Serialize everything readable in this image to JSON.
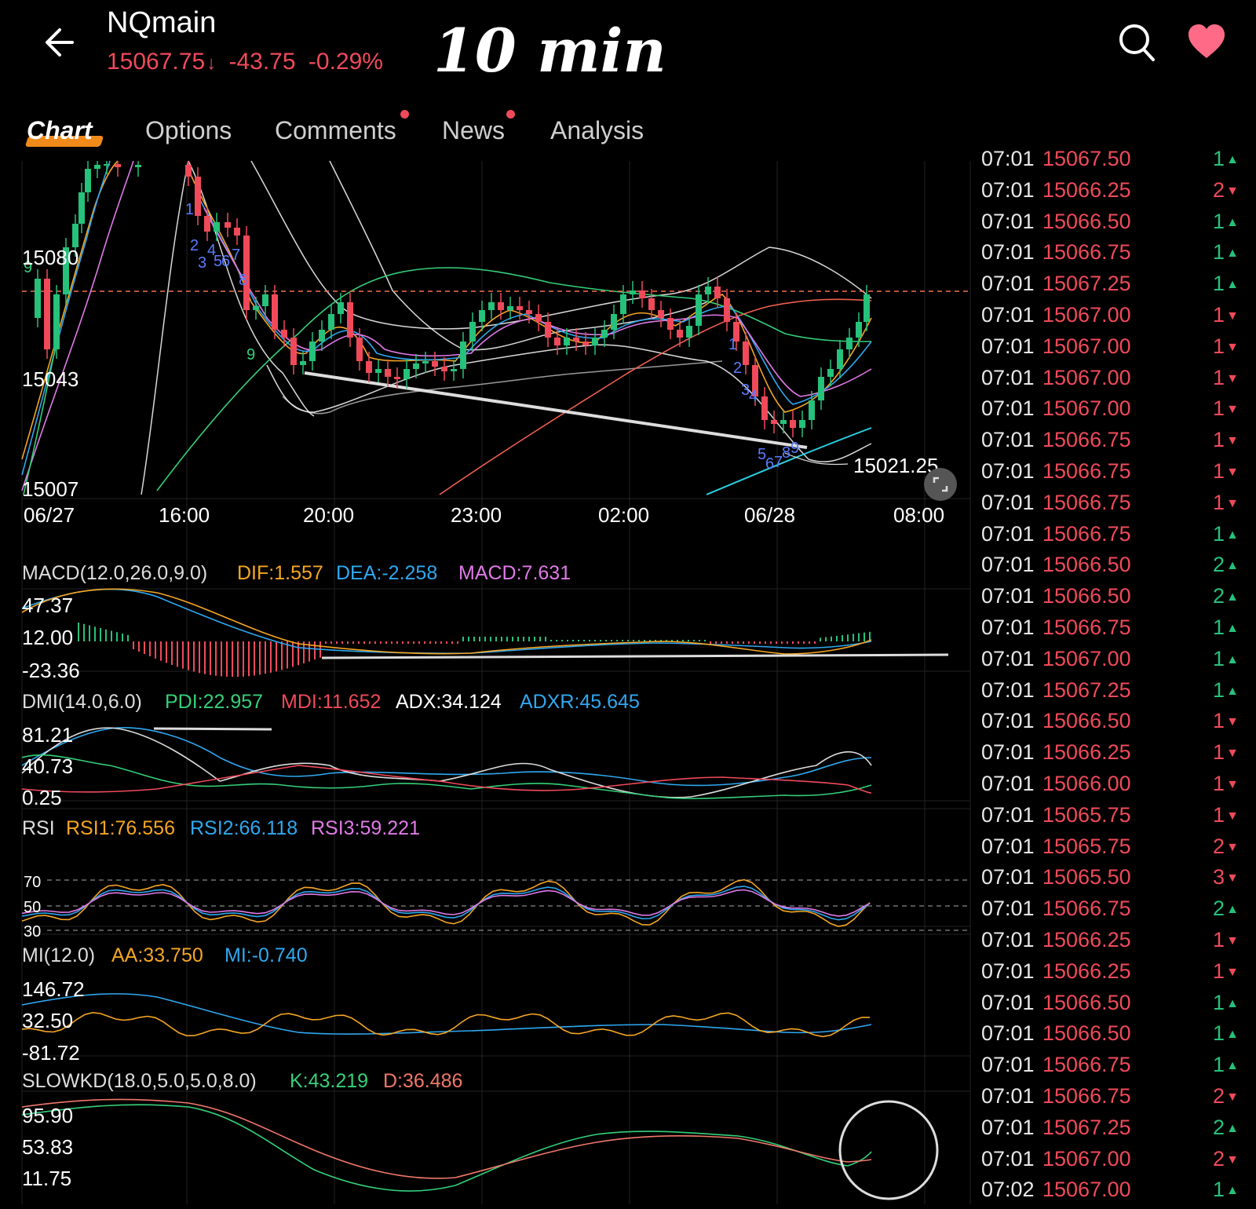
{
  "header": {
    "symbol": "NQmain",
    "last_price": "15067.75",
    "price_arrow": "↓",
    "change": "-43.75",
    "change_pct": "-0.29%",
    "timeframe_annotation": "10 min",
    "icons": [
      "back-arrow-icon",
      "search-icon",
      "heart-icon"
    ],
    "down_color": "#f04a5a",
    "up_color": "#26c17a"
  },
  "tabs": [
    {
      "label": "Chart",
      "active": true,
      "dot": false
    },
    {
      "label": "Options",
      "active": false,
      "dot": false
    },
    {
      "label": "Comments",
      "active": false,
      "dot": true
    },
    {
      "label": "News",
      "active": false,
      "dot": true
    },
    {
      "label": "Analysis",
      "active": false,
      "dot": false
    }
  ],
  "main_chart": {
    "y_labels": [
      "15080",
      "15043",
      "15007"
    ],
    "x_labels": [
      "06/27",
      "16:00",
      "20:00",
      "23:00",
      "02:00",
      "06/28",
      "08:00"
    ],
    "low_marker": "15021.25",
    "candle_count_numbers_top": [
      "1",
      "2",
      "3",
      "4",
      "5",
      "6",
      "7",
      "8",
      "9"
    ],
    "candle_count_numbers_bottom": [
      "1",
      "2",
      "3",
      "4",
      "5",
      "6",
      "7",
      "8",
      "9"
    ],
    "fullscreen_icon": "expand-icon"
  },
  "indicators": {
    "macd": {
      "title": "MACD(12.0,26.0,9.0)",
      "values": [
        {
          "label": "DIF:1.557",
          "color": "#f5a623"
        },
        {
          "label": "DEA:-2.258",
          "color": "#2fa8f0"
        },
        {
          "label": "MACD:7.631",
          "color": "#e07ae8"
        }
      ],
      "y_labels": [
        "47.37",
        "12.00",
        "-23.36"
      ]
    },
    "dmi": {
      "title": "DMI(14.0,6.0)",
      "values": [
        {
          "label": "PDI:22.957",
          "color": "#35d07a"
        },
        {
          "label": "MDI:11.652",
          "color": "#f04a5a"
        },
        {
          "label": "ADX:34.124",
          "color": "#ffffff"
        },
        {
          "label": "ADXR:45.645",
          "color": "#2fa8f0"
        }
      ],
      "y_labels": [
        "81.21",
        "40.73",
        "0.25"
      ]
    },
    "rsi": {
      "title": "RSI",
      "values": [
        {
          "label": "RSI1:76.556",
          "color": "#f5a623"
        },
        {
          "label": "RSI2:66.118",
          "color": "#2fa8f0"
        },
        {
          "label": "RSI3:59.221",
          "color": "#e07ae8"
        }
      ],
      "y_labels": [
        "70",
        "50",
        "30"
      ]
    },
    "mi": {
      "title": "MI(12.0)",
      "values": [
        {
          "label": "AA:33.750",
          "color": "#f5a623"
        },
        {
          "label": "MI:-0.740",
          "color": "#2fa8f0"
        }
      ],
      "y_labels": [
        "146.72",
        "32.50",
        "-81.72"
      ]
    },
    "slowkd": {
      "title": "SLOWKD(18.0,5.0,5.0,8.0)",
      "values": [
        {
          "label": "K:43.219",
          "color": "#35d07a"
        },
        {
          "label": "D:36.486",
          "color": "#f0786a"
        }
      ],
      "y_labels": [
        "95.90",
        "53.83",
        "11.75"
      ]
    }
  },
  "time_and_sales": [
    {
      "time": "07:01",
      "price": "15067.50",
      "vol": "1",
      "dir": "up"
    },
    {
      "time": "07:01",
      "price": "15066.25",
      "vol": "2",
      "dir": "down"
    },
    {
      "time": "07:01",
      "price": "15066.50",
      "vol": "1",
      "dir": "up"
    },
    {
      "time": "07:01",
      "price": "15066.75",
      "vol": "1",
      "dir": "up"
    },
    {
      "time": "07:01",
      "price": "15067.25",
      "vol": "1",
      "dir": "up"
    },
    {
      "time": "07:01",
      "price": "15067.00",
      "vol": "1",
      "dir": "down"
    },
    {
      "time": "07:01",
      "price": "15067.00",
      "vol": "1",
      "dir": "down"
    },
    {
      "time": "07:01",
      "price": "15067.00",
      "vol": "1",
      "dir": "down"
    },
    {
      "time": "07:01",
      "price": "15067.00",
      "vol": "1",
      "dir": "down"
    },
    {
      "time": "07:01",
      "price": "15066.75",
      "vol": "1",
      "dir": "down"
    },
    {
      "time": "07:01",
      "price": "15066.75",
      "vol": "1",
      "dir": "down"
    },
    {
      "time": "07:01",
      "price": "15066.75",
      "vol": "1",
      "dir": "down"
    },
    {
      "time": "07:01",
      "price": "15066.75",
      "vol": "1",
      "dir": "up"
    },
    {
      "time": "07:01",
      "price": "15066.50",
      "vol": "2",
      "dir": "up"
    },
    {
      "time": "07:01",
      "price": "15066.50",
      "vol": "2",
      "dir": "up"
    },
    {
      "time": "07:01",
      "price": "15066.75",
      "vol": "1",
      "dir": "up"
    },
    {
      "time": "07:01",
      "price": "15067.00",
      "vol": "1",
      "dir": "up"
    },
    {
      "time": "07:01",
      "price": "15067.25",
      "vol": "1",
      "dir": "up"
    },
    {
      "time": "07:01",
      "price": "15066.50",
      "vol": "1",
      "dir": "down"
    },
    {
      "time": "07:01",
      "price": "15066.25",
      "vol": "1",
      "dir": "down"
    },
    {
      "time": "07:01",
      "price": "15066.00",
      "vol": "1",
      "dir": "down"
    },
    {
      "time": "07:01",
      "price": "15065.75",
      "vol": "1",
      "dir": "down"
    },
    {
      "time": "07:01",
      "price": "15065.75",
      "vol": "2",
      "dir": "down"
    },
    {
      "time": "07:01",
      "price": "15065.50",
      "vol": "3",
      "dir": "down"
    },
    {
      "time": "07:01",
      "price": "15066.75",
      "vol": "2",
      "dir": "up"
    },
    {
      "time": "07:01",
      "price": "15066.25",
      "vol": "1",
      "dir": "down"
    },
    {
      "time": "07:01",
      "price": "15066.25",
      "vol": "1",
      "dir": "down"
    },
    {
      "time": "07:01",
      "price": "15066.50",
      "vol": "1",
      "dir": "up"
    },
    {
      "time": "07:01",
      "price": "15066.50",
      "vol": "1",
      "dir": "up"
    },
    {
      "time": "07:01",
      "price": "15066.75",
      "vol": "1",
      "dir": "up"
    },
    {
      "time": "07:01",
      "price": "15066.75",
      "vol": "2",
      "dir": "down"
    },
    {
      "time": "07:01",
      "price": "15067.25",
      "vol": "2",
      "dir": "up"
    },
    {
      "time": "07:01",
      "price": "15067.00",
      "vol": "2",
      "dir": "down"
    },
    {
      "time": "07:02",
      "price": "15067.00",
      "vol": "1",
      "dir": "up"
    }
  ]
}
